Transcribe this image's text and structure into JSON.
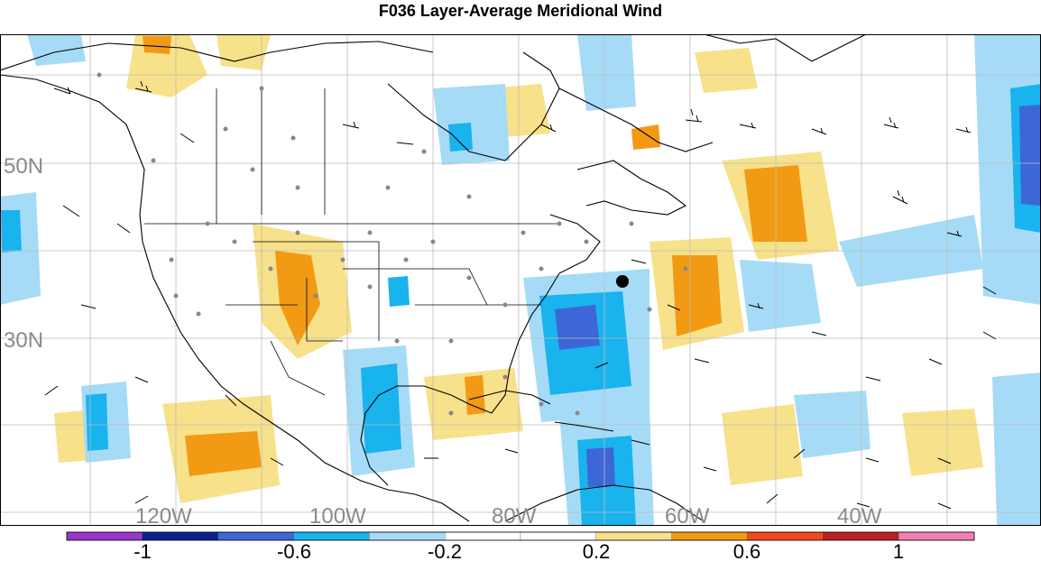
{
  "title": "F036 Layer-Average Meridional Wind",
  "map": {
    "lat_labels": [
      "50N",
      "30N"
    ],
    "lon_labels": [
      "120W",
      "100W",
      "80W",
      "60W",
      "40W"
    ],
    "marker": "observation-point"
  },
  "colorbar": {
    "colors": [
      "#9a36c9",
      "#0b1f8f",
      "#3d66d6",
      "#19b3ee",
      "#a6dbf7",
      "#ffffff",
      "#ffffff",
      "#f7e18a",
      "#f29a14",
      "#ee4a1c",
      "#b82020",
      "#f27fb0"
    ],
    "labels": [
      "-1",
      "-0.6",
      "-0.2",
      "0.2",
      "0.6",
      "1"
    ]
  }
}
